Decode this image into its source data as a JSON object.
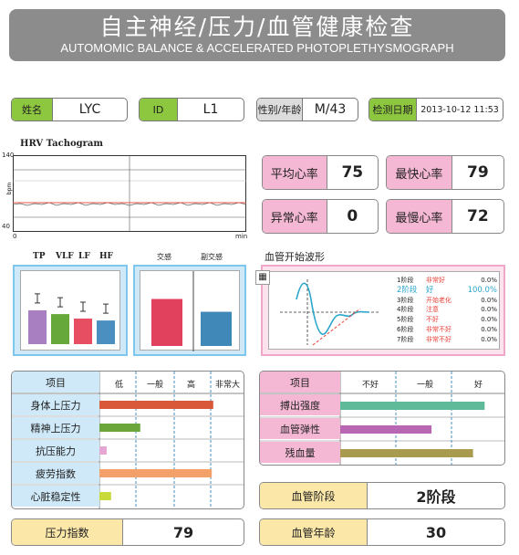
{
  "header": {
    "title": "自主神经/压力/血管健康检查",
    "subtitle": "AUTOMOMIC BALANCE & ACCELERATED PHOTOPLETHYSMOGRAPH"
  },
  "info": {
    "name_label": "姓名",
    "name_value": "LYC",
    "id_label": "ID",
    "id_value": "L1",
    "sexage_label": "性别/年龄",
    "sexage_value": "M/43",
    "date_label": "检测日期",
    "date_value": "2013-10-12 11:53"
  },
  "tachogram": {
    "title": "HRV Tachogram",
    "y_max": "140",
    "y_min": "40",
    "y_unit": "bpm",
    "x_min": "0",
    "x_unit": "min"
  },
  "heart": {
    "avg_label": "平均心率",
    "avg_value": "75",
    "max_label": "最快心率",
    "max_value": "79",
    "abnormal_label": "异常心率",
    "abnormal_value": "0",
    "min_label": "最慢心率",
    "min_value": "72"
  },
  "hrv_bars": {
    "labels": [
      "TP",
      "VLF",
      "LF",
      "HF"
    ],
    "values": [
      0.53,
      0.47,
      0.4,
      0.37
    ],
    "colors": [
      "#a87fc0",
      "#66a83a",
      "#e84e62",
      "#4a8fc0"
    ]
  },
  "ans": {
    "sym_label": "交感",
    "para_label": "副交感",
    "sym_value": 0.66,
    "para_value": 0.48,
    "sym_color": "#e2415d",
    "para_color": "#3f88b8"
  },
  "waveform": {
    "title": "血管开始波形",
    "stages": [
      {
        "label": "1阶段",
        "status": "非常好",
        "pct": "0.0%"
      },
      {
        "label": "2阶段",
        "status": "好",
        "pct": "100.0%"
      },
      {
        "label": "3阶段",
        "status": "开始老化",
        "pct": "0.0%"
      },
      {
        "label": "4阶段",
        "status": "注意",
        "pct": "0.0%"
      },
      {
        "label": "5阶段",
        "status": "不好",
        "pct": "0.0%"
      },
      {
        "label": "6阶段",
        "status": "非常不好",
        "pct": "0.0%"
      },
      {
        "label": "7阶段",
        "status": "非常不好",
        "pct": "0.0%"
      }
    ]
  },
  "stress_table": {
    "header": "项目",
    "levels": [
      "低",
      "一般",
      "高",
      "非常大"
    ],
    "rows": [
      {
        "label": "身体上压力",
        "value": 0.78,
        "color": "#d9583a"
      },
      {
        "label": "精神上压力",
        "value": 0.28,
        "color": "#6aa63a"
      },
      {
        "label": "抗压能力",
        "value": 0.05,
        "color": "#e6a6d4"
      },
      {
        "label": "疲劳指数",
        "value": 0.77,
        "color": "#f4a06a"
      },
      {
        "label": "心脏稳定性",
        "value": 0.08,
        "color": "#c8d93a"
      }
    ]
  },
  "vessel_table": {
    "header": "项目",
    "levels": [
      "不好",
      "一般",
      "好"
    ],
    "rows": [
      {
        "label": "搏出强度",
        "value": 0.87,
        "color": "#5fba9a"
      },
      {
        "label": "血管弹性",
        "value": 0.55,
        "color": "#b867b2"
      },
      {
        "label": "残血量",
        "value": 0.8,
        "color": "#a89a4e"
      }
    ]
  },
  "summary": {
    "stress_index_label": "压力指数",
    "stress_index_value": "79",
    "vessel_stage_label": "血管阶段",
    "vessel_stage_value": "2阶段",
    "vessel_age_label": "血管年龄",
    "vessel_age_value": "30"
  }
}
